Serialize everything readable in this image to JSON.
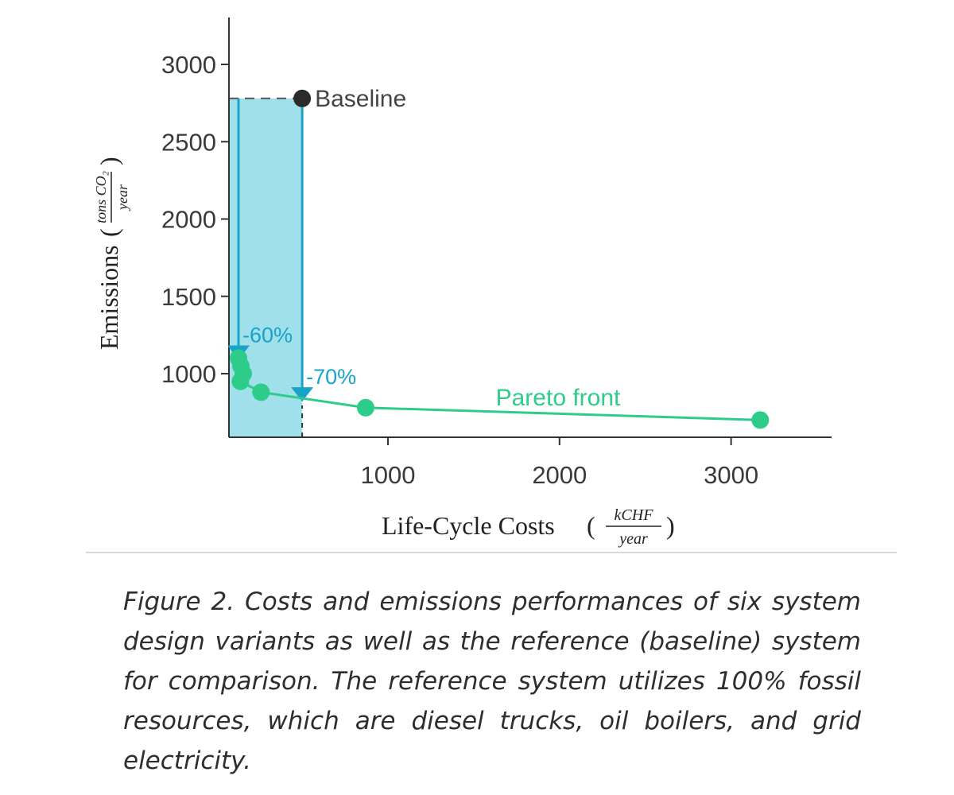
{
  "chart_data": {
    "type": "scatter",
    "xlabel": "Life-Cycle Costs",
    "xlabel_unit_num": "kCHF",
    "xlabel_unit_den": "year",
    "ylabel": "Emissions",
    "ylabel_unit_num": "tons CO₂",
    "ylabel_unit_den": "year",
    "xlim": [
      0,
      3600
    ],
    "ylim": [
      400,
      3250
    ],
    "xticks": [
      1000,
      2000,
      3000
    ],
    "yticks": [
      1000,
      1500,
      2000,
      2500,
      3000
    ],
    "grid": false,
    "baseline": {
      "label": "Baseline",
      "x": 500,
      "y": 2780,
      "color": "#2b2b2b"
    },
    "pareto_front": {
      "label": "Pareto front",
      "color": "#2ecc8a",
      "x": [
        60,
        80,
        90,
        140,
        260,
        870,
        3170
      ],
      "y": [
        1100,
        1050,
        1000,
        950,
        880,
        780,
        700
      ]
    },
    "shaded_region": {
      "x": [
        0,
        500
      ],
      "y": [
        400,
        2780
      ],
      "color": "#8fdbe8"
    },
    "annotations": [
      {
        "label": "-60%",
        "x": 60,
        "from_y": 2780,
        "to_y": 1100
      },
      {
        "label": "-70%",
        "x": 500,
        "from_y": 2780,
        "to_y": 830
      }
    ],
    "arrow_color": "#1aa3c8"
  },
  "caption": "Figure 2. Costs and emissions performances of six system design variants as well as the reference (baseline) system for comparison. The reference system utilizes 100% fossil resources, which are diesel trucks, oil boilers, and grid electricity."
}
